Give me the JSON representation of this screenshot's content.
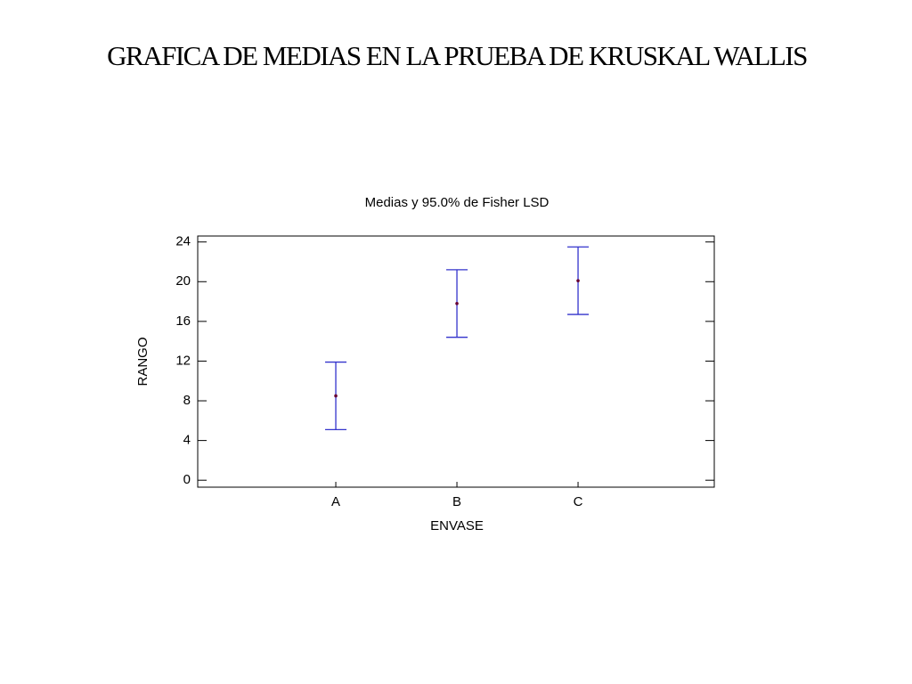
{
  "slide_title": "GRAFICA DE MEDIAS EN LA PRUEBA DE KRUSKAL WALLIS",
  "chart_data": {
    "type": "errorbar",
    "title": "Medias y 95.0% de Fisher LSD",
    "x_label": "ENVASE",
    "y_label": "RANGO",
    "categories": [
      "A",
      "B",
      "C"
    ],
    "values": [
      8.5,
      17.8,
      20.1
    ],
    "errors": [
      3.4,
      3.4,
      3.4
    ],
    "color": "#3333cc",
    "marker_color": "#660033",
    "ylim": [
      -0.7,
      24.6
    ],
    "yticks": [
      0,
      4,
      8,
      12,
      16,
      20,
      24
    ],
    "grid": false
  }
}
